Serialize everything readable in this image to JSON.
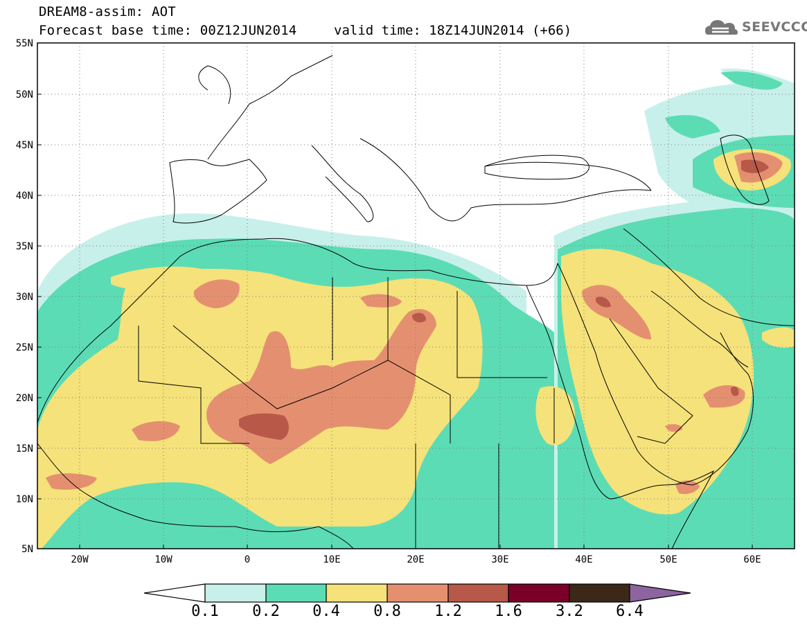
{
  "header": {
    "title_line1": "DREAM8-assim: AOT",
    "base_time": "Forecast base time: 00Z12JUN2014",
    "valid_time": "valid time: 18Z14JUN2014 (+66)",
    "logo_text": "SEEVCCC"
  },
  "map": {
    "lat_labels": [
      "55N",
      "50N",
      "45N",
      "40N",
      "35N",
      "30N",
      "25N",
      "20N",
      "15N",
      "10N",
      "5N"
    ],
    "lon_labels": [
      "20W",
      "10W",
      "0",
      "10E",
      "20E",
      "30E",
      "40E",
      "50E",
      "60E"
    ]
  },
  "colorbar": {
    "levels": [
      "0.1",
      "0.2",
      "0.4",
      "0.8",
      "1.2",
      "1.6",
      "3.2",
      "6.4"
    ],
    "colors": [
      "#c8f0ea",
      "#5cdcb4",
      "#f5e27a",
      "#e49070",
      "#b85848",
      "#7a0028",
      "#3c2818",
      "#8c64a0"
    ],
    "below_color": "#ffffff"
  },
  "chart_data": {
    "type": "heatmap",
    "title": "DREAM8-assim: AOT",
    "x_range_deg": [
      -25,
      65
    ],
    "y_range_deg": [
      5,
      55
    ],
    "legend": "bottom",
    "field": "Aerosol Optical Thickness"
  }
}
